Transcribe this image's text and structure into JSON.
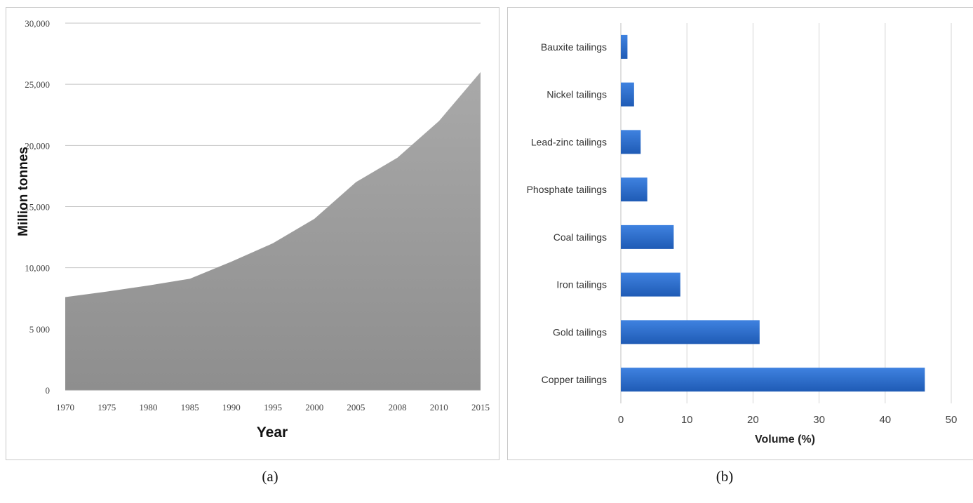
{
  "chart_data": [
    {
      "type": "area",
      "panel_label": "(a)",
      "xlabel": "Year",
      "ylabel": "Million tonnes",
      "categories": [
        "1970",
        "1975",
        "1980",
        "1985",
        "1990",
        "1995",
        "2000",
        "2005",
        "2008",
        "2010",
        "2015"
      ],
      "values": [
        7600,
        8050,
        8550,
        9100,
        10500,
        12000,
        14000,
        17000,
        19000,
        22000,
        26000
      ],
      "ylim": [
        0,
        30000
      ],
      "yticks": [
        0,
        5000,
        10000,
        15000,
        20000,
        25000,
        30000
      ],
      "ytick_labels": [
        "0",
        "5 000",
        "10,000",
        "15,000",
        "20,000",
        "25,000",
        "30,000"
      ],
      "grid": true,
      "fill_color": "#a2a2a2"
    },
    {
      "type": "bar",
      "orientation": "horizontal",
      "panel_label": "(b)",
      "xlabel": "Volume (%)",
      "categories": [
        "Copper tailings",
        "Gold tailings",
        "Iron tailings",
        "Coal tailings",
        "Phosphate tailings",
        "Lead-zinc tailings",
        "Nickel tailings",
        "Bauxite tailings"
      ],
      "values": [
        46,
        21,
        9,
        8,
        4,
        3,
        2,
        1
      ],
      "xlim": [
        0,
        50
      ],
      "xticks": [
        "0",
        "10",
        "20",
        "30",
        "40",
        "50"
      ],
      "grid": true,
      "bar_color": "#2f6fd0"
    }
  ],
  "captions": {
    "a": "(a)",
    "b": "(b)"
  }
}
